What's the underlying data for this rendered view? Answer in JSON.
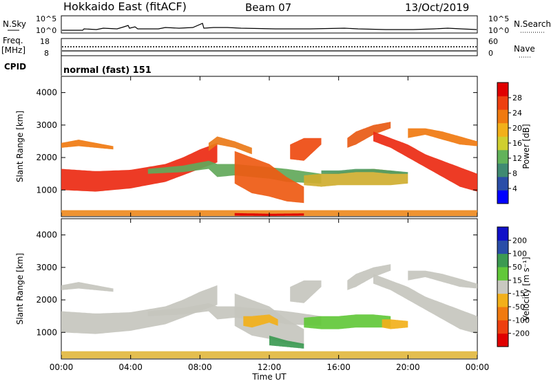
{
  "header": {
    "title": "Hokkaido East (fitACF)",
    "beam": "Beam 07",
    "date": "13/Oct/2019"
  },
  "strip": {
    "nsky_label": "N.Sky",
    "nsky_ticks": [
      "10^5",
      "10^0"
    ],
    "nsearch_label": "N.Search",
    "nsearch_ticks": [
      "10^5",
      "10^0"
    ],
    "freq_label": "Freq.",
    "freq_unit": "[MHz]",
    "freq_ticks": [
      "18",
      "8"
    ],
    "nave_label": "Nave",
    "nave_ticks": [
      "60",
      "0"
    ],
    "cpid_label": "CPID",
    "cpid_value": "normal (fast) 151"
  },
  "chart_data": [
    {
      "type": "heatmap",
      "name": "power",
      "ylabel": "Slant Range [km]",
      "xlabel": "",
      "ylim": [
        180,
        4500
      ],
      "yticks": [
        "4000",
        "3000",
        "2000",
        "1000"
      ],
      "colorbar_label": "Power [dB]",
      "colorbar_ticks": [
        "28",
        "24",
        "20",
        "16",
        "12",
        "8",
        "4"
      ],
      "colorbar_colors": [
        "#0000ff",
        "#2a4ea8",
        "#3f8a72",
        "#62b35a",
        "#cfcf30",
        "#f2b01a",
        "#f07a10",
        "#ee4010",
        "#e00000"
      ],
      "bands": [
        {
          "x": [
            0,
            2,
            4,
            6,
            7,
            8,
            9
          ],
          "lo": [
            1000,
            950,
            1050,
            1250,
            1450,
            1650,
            1850
          ],
          "hi": [
            1650,
            1580,
            1620,
            1800,
            2000,
            2250,
            2450
          ],
          "color": "#ec2a12"
        },
        {
          "x": [
            0,
            1,
            2,
            3
          ],
          "lo": [
            2300,
            2350,
            2300,
            2250
          ],
          "hi": [
            2450,
            2550,
            2450,
            2350
          ],
          "color": "#f07a10"
        },
        {
          "x": [
            5,
            7,
            8.5,
            9,
            10,
            12,
            13,
            15
          ],
          "lo": [
            1500,
            1550,
            1650,
            1400,
            1450,
            1350,
            1250,
            1200
          ],
          "hi": [
            1650,
            1750,
            1900,
            1800,
            1800,
            1700,
            1650,
            1500
          ],
          "color": "#62a85a"
        },
        {
          "x": [
            10,
            11,
            12,
            13,
            14
          ],
          "lo": [
            1200,
            900,
            800,
            650,
            600
          ],
          "hi": [
            2200,
            2000,
            1800,
            1400,
            1100
          ],
          "color": "#ee5a12"
        },
        {
          "x": [
            14,
            15,
            16,
            17,
            18,
            19,
            20
          ],
          "lo": [
            1150,
            1100,
            1150,
            1150,
            1150,
            1150,
            1200
          ],
          "hi": [
            1450,
            1500,
            1550,
            1600,
            1650,
            1600,
            1500
          ],
          "color": "#cfae30"
        },
        {
          "x": [
            15,
            16,
            17,
            18,
            19,
            20
          ],
          "lo": [
            1500,
            1500,
            1550,
            1550,
            1500,
            1500
          ],
          "hi": [
            1600,
            1600,
            1650,
            1650,
            1600,
            1550
          ],
          "color": "#4f9a62"
        },
        {
          "x": [
            13.2,
            14,
            14.6,
            15
          ],
          "lo": [
            1950,
            1900,
            2200,
            2400
          ],
          "hi": [
            2400,
            2600,
            2600,
            2600
          ],
          "color": "#ee4a10"
        },
        {
          "x": [
            16.5,
            17,
            18,
            19
          ],
          "lo": [
            2300,
            2400,
            2700,
            2900
          ],
          "hi": [
            2600,
            2800,
            3000,
            3100
          ],
          "color": "#e85a14"
        },
        {
          "x": [
            18,
            19,
            20,
            21,
            22,
            23,
            24
          ],
          "lo": [
            2500,
            2300,
            2000,
            1700,
            1400,
            1100,
            950
          ],
          "hi": [
            2800,
            2600,
            2400,
            2100,
            1900,
            1700,
            1500
          ],
          "color": "#ec2a12"
        },
        {
          "x": [
            20,
            21,
            22,
            23,
            24
          ],
          "lo": [
            2600,
            2700,
            2550,
            2400,
            2350
          ],
          "hi": [
            2900,
            2900,
            2800,
            2650,
            2500
          ],
          "color": "#f07a10"
        },
        {
          "x": [
            8.5,
            9,
            10,
            11
          ],
          "lo": [
            2200,
            2400,
            2300,
            2100
          ],
          "hi": [
            2450,
            2650,
            2500,
            2300
          ],
          "color": "#ea7a18"
        },
        {
          "x": [
            0,
            24
          ],
          "lo": [
            200,
            200
          ],
          "hi": [
            380,
            380
          ],
          "color": "#ee8a20"
        },
        {
          "x": [
            10,
            12,
            14
          ],
          "lo": [
            210,
            200,
            210
          ],
          "hi": [
            290,
            270,
            280
          ],
          "color": "#e00000"
        }
      ]
    },
    {
      "type": "heatmap",
      "name": "velocity",
      "ylabel": "Slant Range [km]",
      "xlabel": "Time UT",
      "ylim": [
        180,
        4500
      ],
      "yticks": [
        "4000",
        "3000",
        "2000",
        "1000"
      ],
      "xticks": [
        "00:00",
        "04:00",
        "08:00",
        "12:00",
        "16:00",
        "20:00",
        "00:00"
      ],
      "xlim": [
        0,
        24
      ],
      "colorbar_label": "Velocity [m s⁻¹]",
      "colorbar_ticks": [
        "200",
        "100",
        "50",
        "15",
        "-15",
        "-50",
        "-100",
        "-200"
      ],
      "colorbar_colors": [
        "#e00000",
        "#ee4010",
        "#f07a10",
        "#f2b01a",
        "#c8c8c0",
        "#62c83a",
        "#3c9a52",
        "#2a4ea8",
        "#1010c8"
      ],
      "bands": [
        {
          "x": [
            0,
            2,
            4,
            6,
            7,
            8,
            9
          ],
          "lo": [
            1000,
            950,
            1050,
            1250,
            1450,
            1650,
            1850
          ],
          "hi": [
            1650,
            1580,
            1620,
            1800,
            2000,
            2250,
            2450
          ],
          "color": "#c6c6be"
        },
        {
          "x": [
            0,
            1,
            2,
            3
          ],
          "lo": [
            2300,
            2350,
            2300,
            2250
          ],
          "hi": [
            2450,
            2550,
            2450,
            2350
          ],
          "color": "#c6c6be"
        },
        {
          "x": [
            5,
            7,
            8.5,
            9,
            10,
            12,
            13,
            15
          ],
          "lo": [
            1500,
            1550,
            1650,
            1400,
            1450,
            1350,
            1250,
            1200
          ],
          "hi": [
            1650,
            1750,
            1900,
            1800,
            1800,
            1700,
            1650,
            1500
          ],
          "color": "#c6c6be"
        },
        {
          "x": [
            10,
            11,
            12,
            13,
            14
          ],
          "lo": [
            1200,
            900,
            800,
            650,
            600
          ],
          "hi": [
            2200,
            2000,
            1800,
            1400,
            1100
          ],
          "color": "#c6c6be"
        },
        {
          "x": [
            13.2,
            14,
            14.6,
            15
          ],
          "lo": [
            1950,
            1900,
            2200,
            2400
          ],
          "hi": [
            2400,
            2600,
            2600,
            2600
          ],
          "color": "#c6c6be"
        },
        {
          "x": [
            16.5,
            17,
            18,
            19
          ],
          "lo": [
            2300,
            2400,
            2700,
            2900
          ],
          "hi": [
            2600,
            2800,
            3000,
            3100
          ],
          "color": "#c6c6be"
        },
        {
          "x": [
            18,
            19,
            20,
            21,
            22,
            23,
            24
          ],
          "lo": [
            2500,
            2300,
            2000,
            1700,
            1400,
            1100,
            950
          ],
          "hi": [
            2800,
            2600,
            2400,
            2100,
            1900,
            1700,
            1500
          ],
          "color": "#c6c6be"
        },
        {
          "x": [
            20,
            21,
            22,
            23,
            24
          ],
          "lo": [
            2600,
            2700,
            2550,
            2400,
            2350
          ],
          "hi": [
            2900,
            2900,
            2800,
            2650,
            2500
          ],
          "color": "#c6c6be"
        },
        {
          "x": [
            14,
            15,
            16,
            17,
            18,
            19
          ],
          "lo": [
            1150,
            1100,
            1100,
            1150,
            1150,
            1150
          ],
          "hi": [
            1450,
            1500,
            1500,
            1550,
            1550,
            1500
          ],
          "color": "#62c83a"
        },
        {
          "x": [
            10.5,
            11,
            12,
            12.5
          ],
          "lo": [
            1200,
            1150,
            1300,
            1200
          ],
          "hi": [
            1500,
            1500,
            1550,
            1400
          ],
          "color": "#f2b01a"
        },
        {
          "x": [
            18.5,
            19,
            20
          ],
          "lo": [
            1150,
            1100,
            1150
          ],
          "hi": [
            1400,
            1400,
            1350
          ],
          "color": "#f2b01a"
        },
        {
          "x": [
            12,
            13,
            14
          ],
          "lo": [
            600,
            550,
            500
          ],
          "hi": [
            900,
            750,
            650
          ],
          "color": "#3c9a52"
        },
        {
          "x": [
            0,
            24
          ],
          "lo": [
            200,
            200
          ],
          "hi": [
            420,
            420
          ],
          "color": "#e2b840"
        }
      ]
    }
  ]
}
